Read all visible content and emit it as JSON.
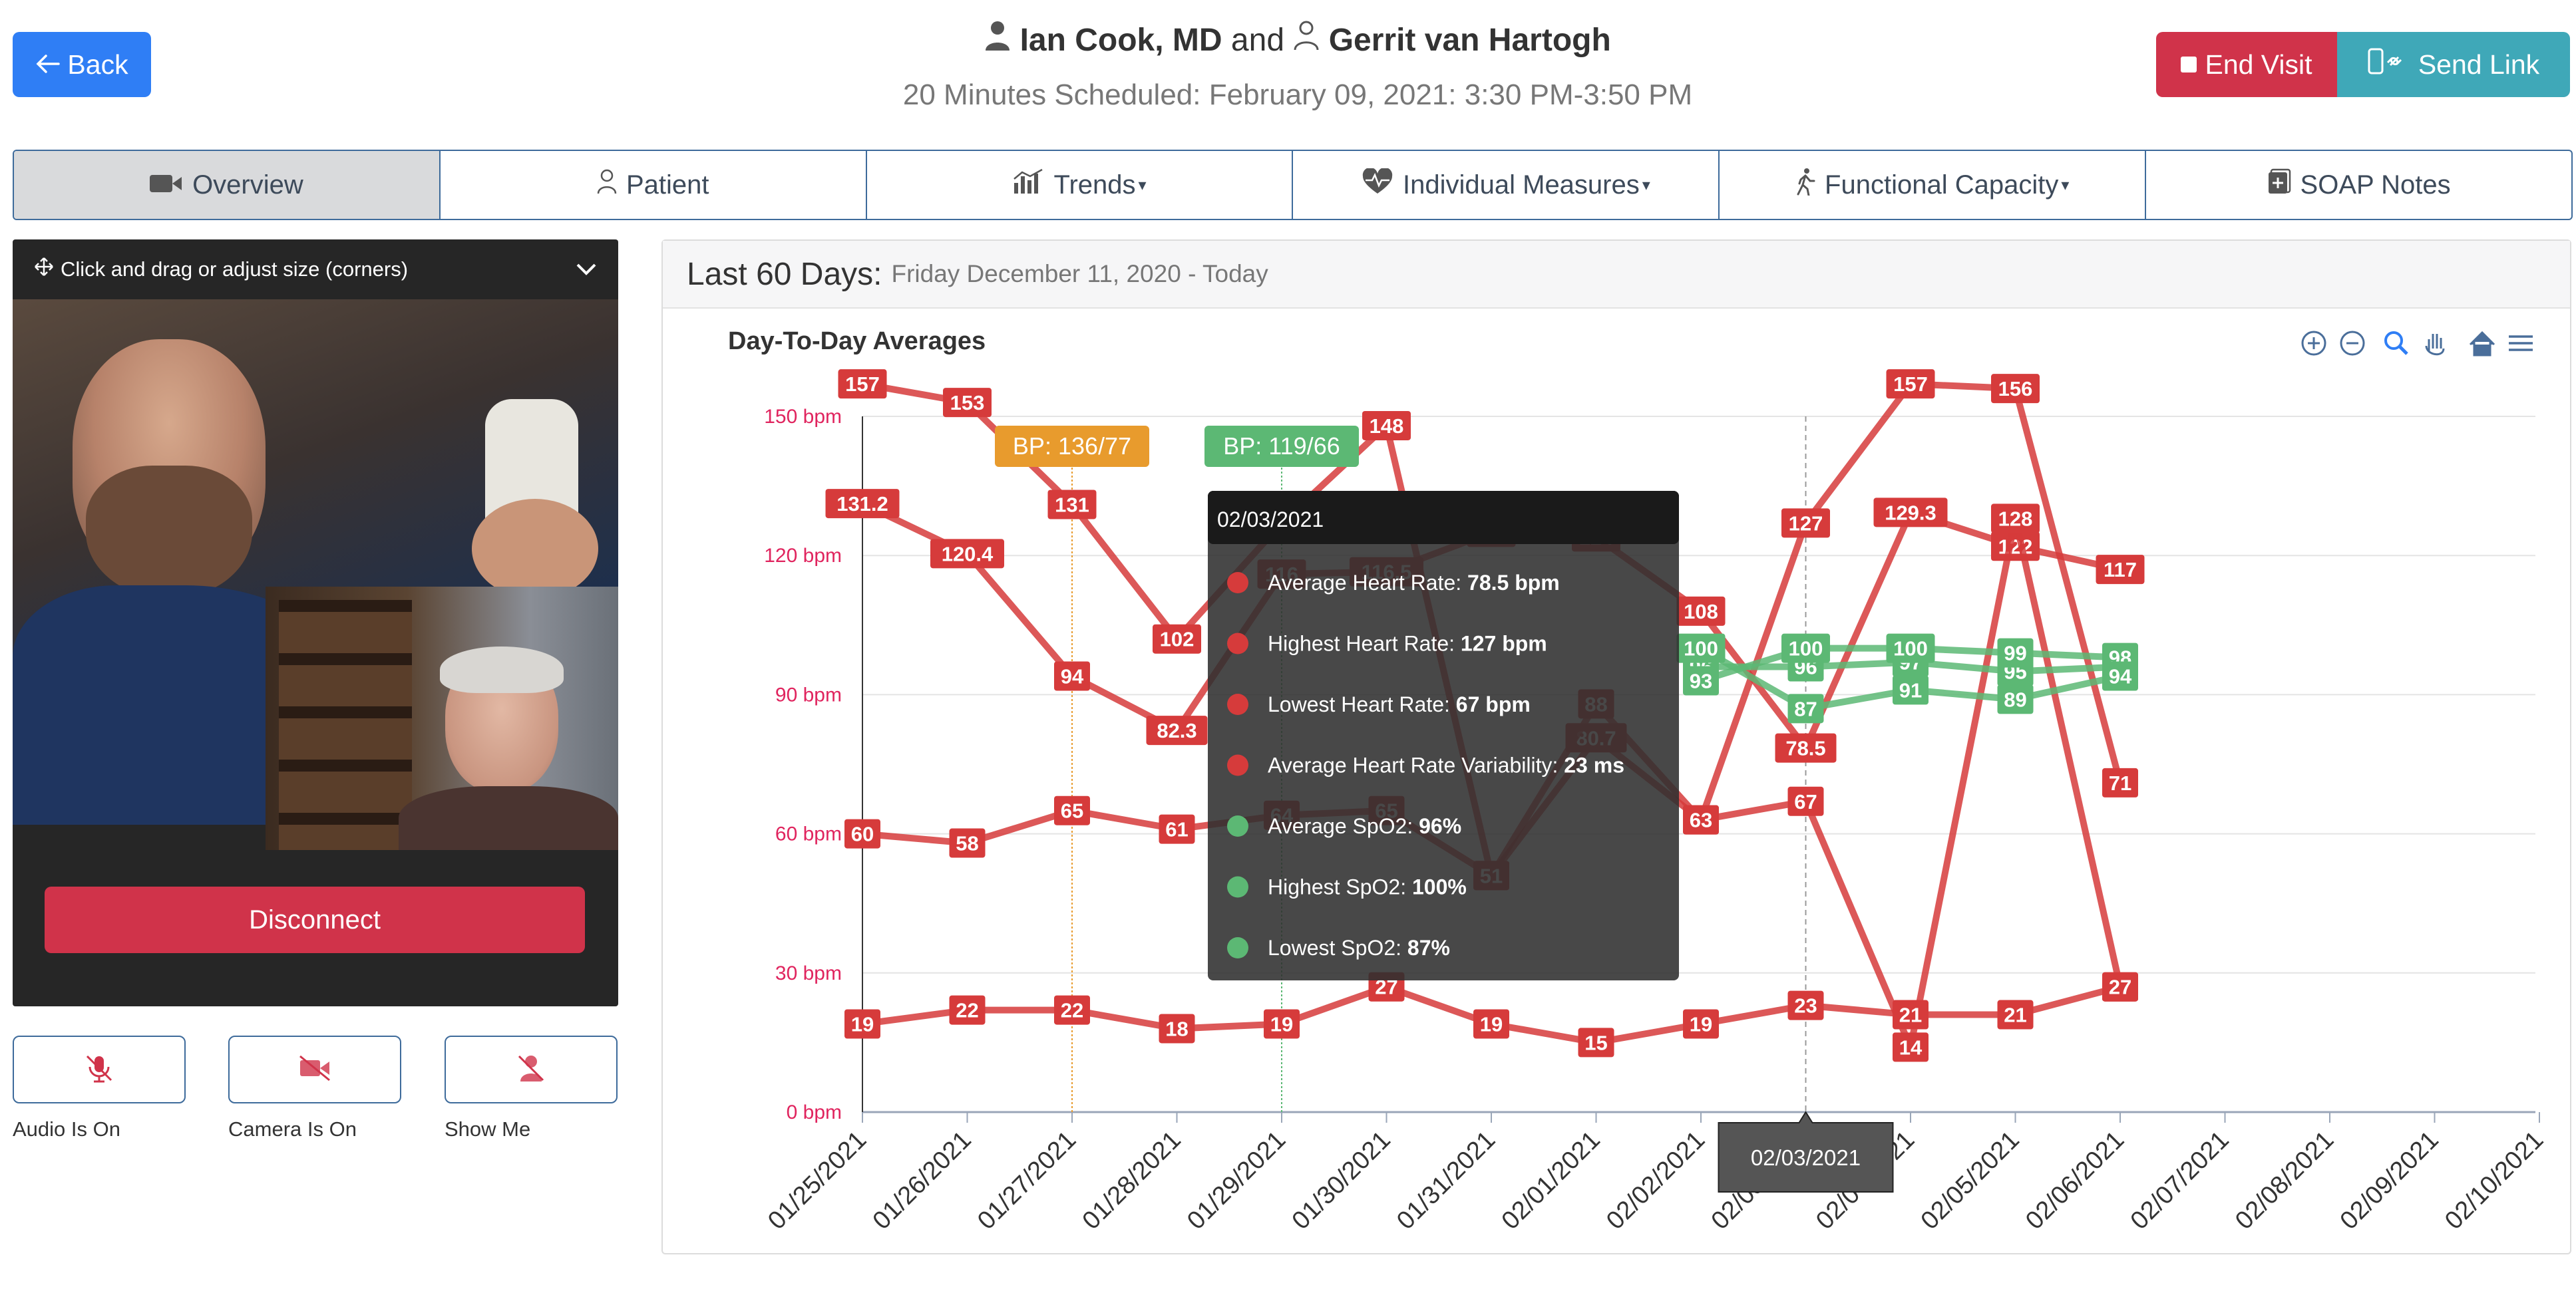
{
  "header": {
    "back_label": "Back",
    "doctor": "Ian Cook, MD",
    "and_word": "and",
    "patient": "Gerrit van Hartogh",
    "schedule": "20 Minutes Scheduled: February 09, 2021: 3:30 PM-3:50 PM",
    "end_visit_label": "End Visit",
    "send_link_label": "Send Link"
  },
  "tabs": [
    {
      "label": "Overview",
      "icon": "video-camera-icon",
      "active": true
    },
    {
      "label": "Patient",
      "icon": "person-icon"
    },
    {
      "label": "Trends",
      "icon": "bar-chart-icon",
      "dropdown": true
    },
    {
      "label": "Individual Measures",
      "icon": "heartbeat-icon",
      "dropdown": true
    },
    {
      "label": "Functional Capacity",
      "icon": "walking-icon",
      "dropdown": true
    },
    {
      "label": "SOAP Notes",
      "icon": "notes-icon"
    }
  ],
  "video": {
    "drag_hint": "Click and drag or adjust size (corners)",
    "disconnect_label": "Disconnect",
    "controls": [
      {
        "label": "Audio Is On",
        "icon": "microphone-off-icon"
      },
      {
        "label": "Camera Is On",
        "icon": "camera-off-icon"
      },
      {
        "label": "Show Me",
        "icon": "person-off-icon"
      }
    ]
  },
  "panel": {
    "title": "Last 60 Days:",
    "range": "Friday December 11, 2020 - Today"
  },
  "colors": {
    "red": "#d63b3b",
    "green": "#5cb874",
    "bp_orange": "#e89b2d",
    "bp_green": "#5cb874",
    "axis_red": "#e0245e"
  },
  "chart_data": {
    "type": "line",
    "title": "Day-To-Day Averages",
    "x": [
      "01/25/2021",
      "01/26/2021",
      "01/27/2021",
      "01/28/2021",
      "01/29/2021",
      "01/30/2021",
      "01/31/2021",
      "02/01/2021",
      "02/02/2021",
      "02/03/2021",
      "02/04/2021",
      "02/05/2021",
      "02/06/2021",
      "02/07/2021",
      "02/08/2021",
      "02/09/2021",
      "02/10/2021"
    ],
    "y_ticks": [
      "0 bpm",
      "30 bpm",
      "60 bpm",
      "90 bpm",
      "120 bpm",
      "150 bpm"
    ],
    "ylim": [
      0,
      150
    ],
    "annotations": [
      {
        "label": "BP: 136/77",
        "x": "01/27/2021",
        "color": "orange"
      },
      {
        "label": "BP: 119/66",
        "x": "01/29/2021",
        "color": "green"
      }
    ],
    "series": [
      {
        "name": "Average Heart Rate",
        "color": "red",
        "x": [
          "01/25/2021",
          "01/26/2021",
          "01/27/2021",
          "01/28/2021",
          "01/29/2021",
          "01/30/2021",
          "01/31/2021",
          "02/01/2021",
          "02/02/2021",
          "02/03/2021",
          "02/04/2021",
          "02/05/2021",
          "02/06/2021"
        ],
        "values": [
          131.2,
          120.4,
          94,
          82.3,
          116,
          116.5,
          125,
          124,
          108,
          78.5,
          129.3,
          122,
          117
        ]
      },
      {
        "name": "Highest Heart Rate",
        "color": "red",
        "x": [
          "01/25/2021",
          "01/26/2021",
          "01/27/2021",
          "01/28/2021",
          "01/29/2021",
          "01/30/2021",
          "01/31/2021",
          "02/01/2021",
          "02/02/2021",
          "02/03/2021",
          "02/04/2021",
          "02/05/2021",
          "02/06/2021"
        ],
        "values": [
          157,
          153,
          131,
          102,
          127,
          148,
          51,
          80.7,
          63,
          127,
          157,
          156,
          71
        ]
      },
      {
        "name": "Lowest Heart Rate",
        "color": "red",
        "x": [
          "01/25/2021",
          "01/26/2021",
          "01/27/2021",
          "01/28/2021",
          "01/29/2021",
          "01/30/2021",
          "01/31/2021",
          "02/01/2021",
          "02/02/2021",
          "02/03/2021",
          "02/04/2021",
          "02/05/2021",
          "02/06/2021"
        ],
        "values": [
          60,
          58,
          65,
          61,
          64,
          65,
          51,
          88,
          63,
          67,
          14,
          128,
          27
        ]
      },
      {
        "name": "Average Heart Rate Variability",
        "color": "red",
        "x": [
          "01/25/2021",
          "01/26/2021",
          "01/27/2021",
          "01/28/2021",
          "01/29/2021",
          "01/30/2021",
          "01/31/2021",
          "02/01/2021",
          "02/02/2021",
          "02/03/2021",
          "02/04/2021",
          "02/05/2021",
          "02/06/2021"
        ],
        "values": [
          19,
          22,
          22,
          18,
          19,
          27,
          19,
          15,
          19,
          23,
          21,
          21,
          27
        ]
      },
      {
        "name": "Average SpO2",
        "color": "green",
        "x": [
          "02/02/2021",
          "02/03/2021",
          "02/04/2021",
          "02/05/2021",
          "02/06/2021"
        ],
        "values": [
          96,
          96,
          97,
          95,
          96
        ]
      },
      {
        "name": "Highest SpO2",
        "color": "green",
        "x": [
          "02/02/2021",
          "02/03/2021",
          "02/04/2021",
          "02/05/2021",
          "02/06/2021"
        ],
        "values": [
          93,
          100,
          100,
          99,
          98
        ]
      },
      {
        "name": "Lowest SpO2",
        "color": "green",
        "x": [
          "02/02/2021",
          "02/03/2021",
          "02/04/2021",
          "02/05/2021",
          "02/06/2021"
        ],
        "values": [
          100,
          87,
          91,
          89,
          94
        ]
      }
    ],
    "tooltip": {
      "date": "02/03/2021",
      "rows": [
        {
          "label": "Average Heart Rate:",
          "value": "78.5 bpm",
          "color": "red"
        },
        {
          "label": "Highest Heart Rate:",
          "value": "127 bpm",
          "color": "red"
        },
        {
          "label": "Lowest Heart Rate:",
          "value": "67 bpm",
          "color": "red"
        },
        {
          "label": "Average Heart Rate Variability:",
          "value": "23 ms",
          "color": "red"
        },
        {
          "label": "Average SpO2:",
          "value": "96%",
          "color": "green"
        },
        {
          "label": "Highest SpO2:",
          "value": "100%",
          "color": "green"
        },
        {
          "label": "Lowest SpO2:",
          "value": "87%",
          "color": "green"
        }
      ]
    },
    "crosshair_label": "02/03/2021",
    "toolbar": [
      "zoom-in-icon",
      "zoom-out-icon",
      "magnifier-icon",
      "pan-hand-icon",
      "home-icon",
      "menu-icon"
    ]
  }
}
